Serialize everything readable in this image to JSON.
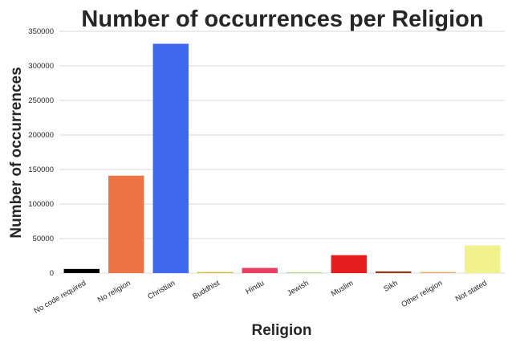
{
  "chart_data": {
    "type": "bar",
    "title": "Number of occurrences per Religion",
    "xlabel": "Religion",
    "ylabel": "Number of occurrences",
    "categories": [
      "No code required",
      "No religion",
      "Christian",
      "Buddhist",
      "Hindu",
      "Jewish",
      "Muslim",
      "Sikh",
      "Other religion",
      "Not stated"
    ],
    "values": [
      6000,
      141000,
      332000,
      1500,
      7500,
      1000,
      26000,
      2500,
      1500,
      40000
    ],
    "colors": [
      "#000000",
      "#ec7444",
      "#4068ec",
      "#ddb93a",
      "#e84062",
      "#90e36c",
      "#e51d1d",
      "#8b3a1c",
      "#eea860",
      "#f2f28c"
    ],
    "ylim": [
      0,
      350000
    ],
    "yticks": [
      0,
      50000,
      100000,
      150000,
      200000,
      250000,
      300000,
      350000
    ],
    "grid": true,
    "legend": "none"
  }
}
